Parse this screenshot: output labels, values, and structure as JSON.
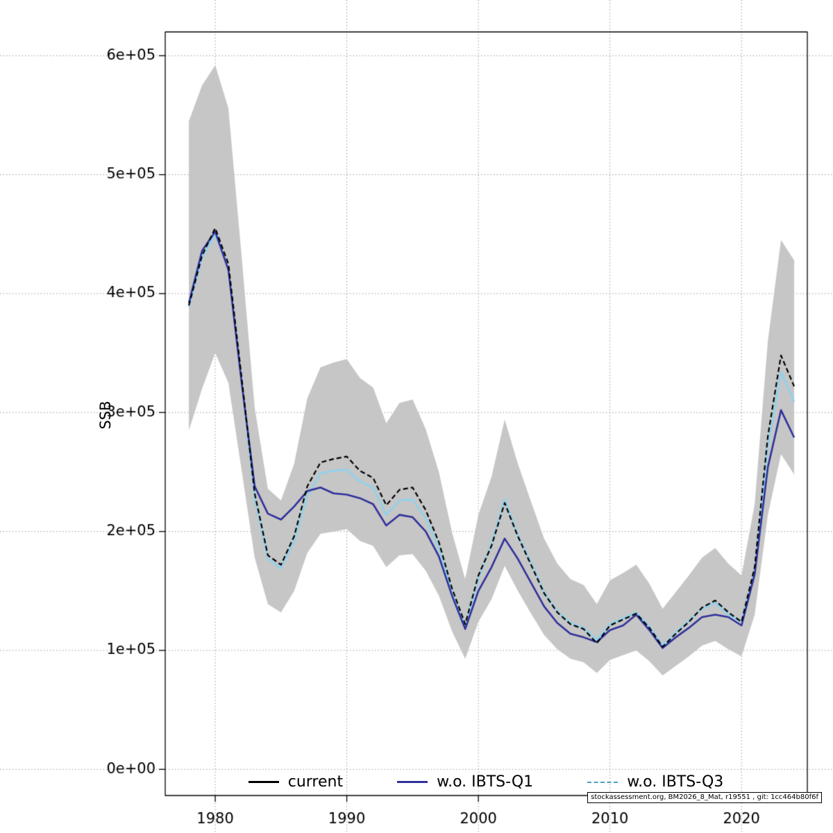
{
  "chart_data": {
    "type": "line",
    "title": "",
    "xlabel": "",
    "ylabel": "SSB",
    "grid": "dotted",
    "x_range": [
      1976.2,
      2025
    ],
    "y_range": [
      -22000,
      620000
    ],
    "x_ticks": [
      1980,
      1990,
      2000,
      2010,
      2020
    ],
    "y_ticks": [
      {
        "value": 0,
        "label": "0e+00"
      },
      {
        "value": 100000,
        "label": "1e+05"
      },
      {
        "value": 200000,
        "label": "2e+05"
      },
      {
        "value": 300000,
        "label": "3e+05"
      },
      {
        "value": 400000,
        "label": "4e+05"
      },
      {
        "value": 500000,
        "label": "5e+05"
      },
      {
        "value": 600000,
        "label": "6e+05"
      }
    ],
    "years": [
      1978,
      1979,
      1980,
      1981,
      1982,
      1983,
      1984,
      1985,
      1986,
      1987,
      1988,
      1989,
      1990,
      1991,
      1992,
      1993,
      1994,
      1995,
      1996,
      1997,
      1998,
      1999,
      2000,
      2001,
      2002,
      2003,
      2004,
      2005,
      2006,
      2007,
      2008,
      2009,
      2010,
      2011,
      2012,
      2013,
      2014,
      2015,
      2016,
      2017,
      2018,
      2019,
      2020,
      2021,
      2022,
      2023,
      2024
    ],
    "band": {
      "color": "#c6c6c6",
      "lower": [
        285000,
        320000,
        350000,
        325000,
        252000,
        178000,
        139000,
        132000,
        150000,
        182000,
        198000,
        200000,
        202000,
        192000,
        188000,
        170000,
        180000,
        181000,
        167000,
        146000,
        116000,
        93000,
        124000,
        143000,
        171000,
        150000,
        131000,
        113000,
        101000,
        93000,
        90000,
        81000,
        92000,
        96000,
        100000,
        91000,
        79000,
        87000,
        95000,
        104000,
        108000,
        101000,
        95000,
        130000,
        214000,
        265000,
        248000
      ],
      "upper": [
        545000,
        575000,
        592000,
        556000,
        432000,
        304000,
        236000,
        226000,
        257000,
        312000,
        338000,
        342000,
        345000,
        329000,
        321000,
        291000,
        308000,
        311000,
        286000,
        250000,
        199000,
        160000,
        214000,
        246000,
        294000,
        257000,
        225000,
        194000,
        173000,
        160000,
        155000,
        139000,
        159000,
        165000,
        172000,
        156000,
        135000,
        149000,
        163000,
        178000,
        186000,
        173000,
        163000,
        223000,
        360000,
        445000,
        428000
      ]
    },
    "series": [
      {
        "name": "current",
        "color": "#000000",
        "style": "dashed",
        "values": [
          390000,
          432000,
          455000,
          425000,
          330000,
          232000,
          180000,
          172000,
          196000,
          238000,
          258000,
          261000,
          263000,
          251000,
          245000,
          222000,
          235000,
          237000,
          218000,
          191000,
          152000,
          122000,
          163000,
          188000,
          224000,
          196000,
          172000,
          148000,
          132000,
          122000,
          118000,
          106000,
          121000,
          126000,
          131000,
          119000,
          103000,
          114000,
          124000,
          136000,
          142000,
          132000,
          124000,
          170000,
          280000,
          348000,
          322000
        ]
      },
      {
        "name": "w.o. IBTS-Q1",
        "color": "#30309c",
        "style": "solid",
        "values": [
          392000,
          436000,
          452000,
          420000,
          326000,
          238000,
          215000,
          210000,
          221000,
          234000,
          237000,
          232000,
          231000,
          228000,
          223000,
          205000,
          214000,
          212000,
          200000,
          179000,
          146000,
          118000,
          150000,
          170000,
          194000,
          177000,
          157000,
          137000,
          123000,
          114000,
          111000,
          107000,
          117000,
          121000,
          130000,
          117000,
          102000,
          111000,
          119000,
          128000,
          130000,
          128000,
          121000,
          164000,
          254000,
          302000,
          279000
        ]
      },
      {
        "name": "w.o. IBTS-Q3",
        "color": "#8ed3ee",
        "style": "solid",
        "values": [
          389000,
          430000,
          450000,
          421000,
          327000,
          228000,
          177000,
          169000,
          192000,
          230000,
          249000,
          251000,
          252000,
          242000,
          237000,
          214000,
          226000,
          227000,
          211000,
          186000,
          149000,
          120000,
          160000,
          190000,
          227000,
          197000,
          174000,
          149000,
          133000,
          123000,
          119000,
          109000,
          122000,
          127000,
          132000,
          120000,
          104000,
          115000,
          125000,
          135000,
          140000,
          130000,
          124000,
          167000,
          271000,
          334000,
          309000
        ]
      }
    ],
    "legend": [
      {
        "label": "current",
        "color": "#000000",
        "dash": "solid"
      },
      {
        "label": "w.o. IBTS-Q1",
        "color": "#30309c",
        "dash": "solid"
      },
      {
        "label": "w.o. IBTS-Q3",
        "color": "#4d9fc4",
        "dash": "dashed"
      }
    ],
    "footer": "stockassessment.org, BM2026_8_Mat, r19551 , git: 1cc464b80f6f"
  }
}
